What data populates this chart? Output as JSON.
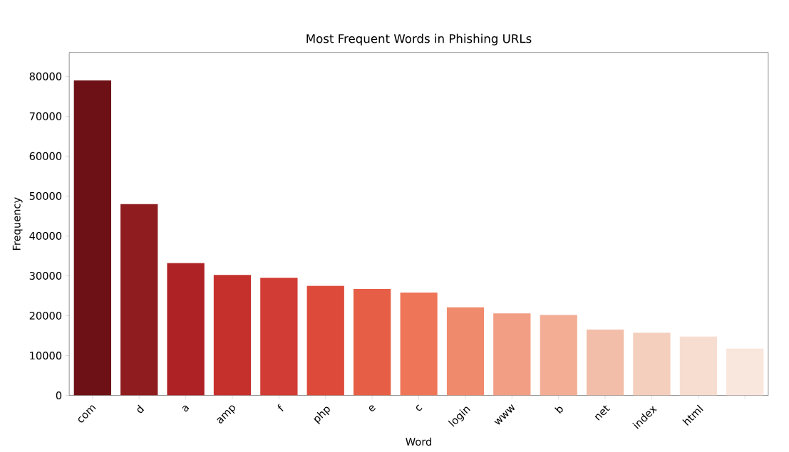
{
  "chart_data": {
    "type": "bar",
    "title": "Most Frequent Words in Phishing URLs",
    "xlabel": "Word",
    "ylabel": "Frequency",
    "categories": [
      "com",
      "d",
      "a",
      "amp",
      "f",
      "php",
      "e",
      "c",
      "login",
      "www",
      "b",
      "net",
      "index",
      "html",
      null
    ],
    "values": [
      79000,
      48000,
      33200,
      30200,
      29500,
      27500,
      26700,
      25800,
      22100,
      20600,
      20200,
      16500,
      15700,
      14800,
      11800
    ],
    "colors": [
      "#6e1117",
      "#8f1d20",
      "#ae2124",
      "#c5302d",
      "#d13c34",
      "#dd4a3a",
      "#e65e45",
      "#ee7558",
      "#f08a6c",
      "#f29e84",
      "#f3ad95",
      "#f3bea9",
      "#f4cfbd",
      "#f7ddd0",
      "#f9e6dc"
    ],
    "ylim": [
      0,
      86000
    ],
    "yticks": [
      0,
      10000,
      20000,
      30000,
      40000,
      50000,
      60000,
      70000,
      80000
    ],
    "grid": false
  }
}
